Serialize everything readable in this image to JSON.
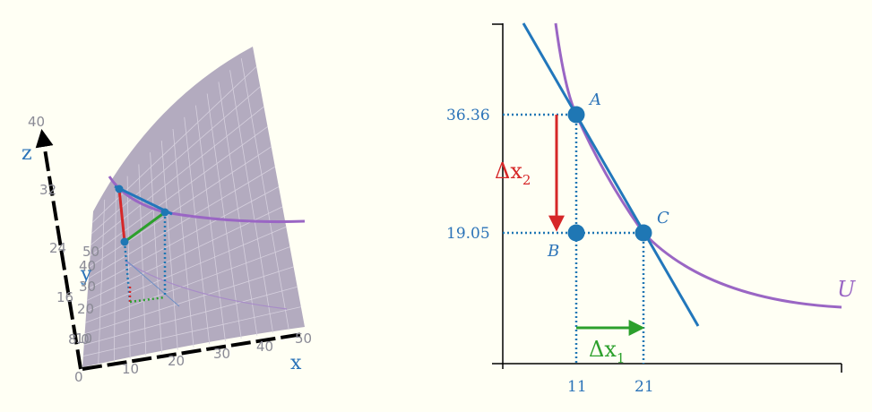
{
  "colors": {
    "background": "#fffff4",
    "axis_label": "#2b73b8",
    "budget_line": "#2277bb",
    "indifference_curve": "#9a66c4",
    "delta_x2": "#d62728",
    "delta_x1": "#2ca02c",
    "surface": "#b3abbf",
    "point": "#1f77b4"
  },
  "left_3d": {
    "axis_labels": {
      "x": "x",
      "y": "y",
      "z": "z"
    },
    "z_ticks": [
      "40",
      "32",
      "24",
      "16",
      "8.0",
      "0"
    ],
    "x_ticks": [
      "10",
      "20",
      "30",
      "40",
      "50"
    ],
    "y_ticks": [
      "50",
      "40",
      "30",
      "20",
      "10"
    ]
  },
  "right_2d": {
    "curve_label": "U",
    "points": {
      "A": "A",
      "B": "B",
      "C": "C"
    },
    "y_values": {
      "top": "36.36",
      "bottom": "19.05"
    },
    "x_values": {
      "left": "11",
      "right": "21"
    },
    "delta_x2": {
      "main": "Δx",
      "sub": "2"
    },
    "delta_x1": {
      "main": "Δx",
      "sub": "1"
    }
  }
}
